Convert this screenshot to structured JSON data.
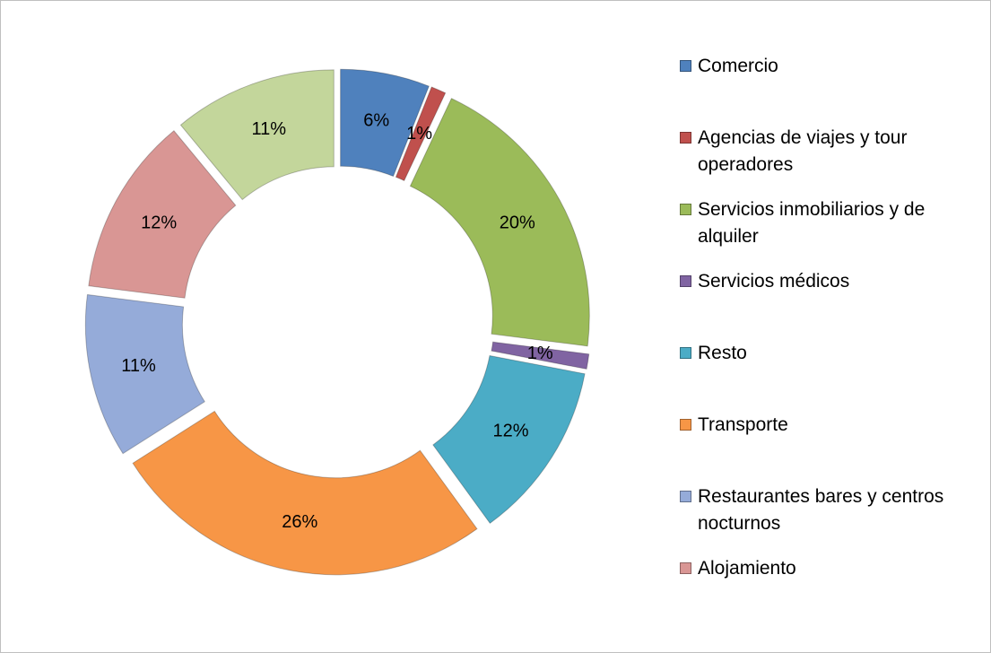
{
  "chart_data": {
    "type": "pie",
    "categories": [
      "Comercio",
      "Agencias de viajes y tour operadores",
      "Servicios inmobiliarios y de alquiler",
      "Servicios médicos",
      "Resto",
      "Transporte",
      "Restaurantes bares y centros nocturnos",
      "Alojamiento",
      null
    ],
    "values": [
      6,
      1,
      20,
      1,
      12,
      26,
      11,
      12,
      11
    ],
    "value_labels": [
      "6%",
      "1%",
      "20%",
      "1%",
      "12%",
      "26%",
      "11%",
      "12%",
      "11%"
    ],
    "colors": [
      "#4f81bd",
      "#c0504d",
      "#9bbb59",
      "#8064a2",
      "#4bacc6",
      "#f79646",
      "#95abd9",
      "#d99694",
      "#c3d69b"
    ]
  }
}
